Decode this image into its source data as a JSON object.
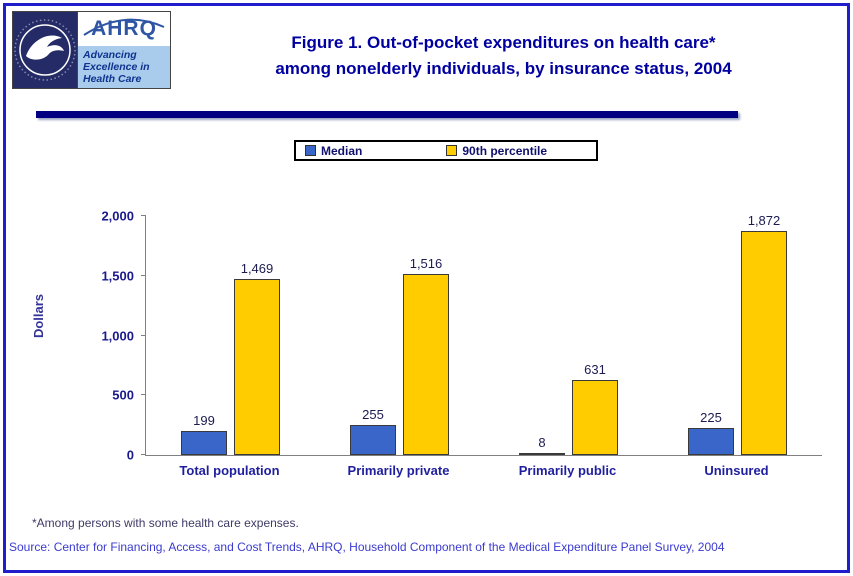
{
  "header": {
    "title_line1": "Figure 1. Out-of-pocket expenditures on health care*",
    "title_line2": "among nonelderly individuals, by insurance status, 2004",
    "logos": {
      "hhs": {
        "name": "HHS seal"
      },
      "ahrq": {
        "name": "AHRQ",
        "tagline": [
          "Advancing",
          "Excellence in",
          "Health Care"
        ]
      }
    }
  },
  "legend": {
    "items": [
      {
        "label": "Median",
        "color": "#3b66c9"
      },
      {
        "label": "90th percentile",
        "color": "#ffcc00"
      }
    ]
  },
  "chart_data": {
    "type": "bar",
    "title": "Out-of-pocket expenditures on health care among nonelderly individuals, by insurance status, 2004",
    "categories": [
      "Total population",
      "Primarily private",
      "Primarily public",
      "Uninsured"
    ],
    "series": [
      {
        "name": "Median",
        "color": "#3b66c9",
        "values": [
          199,
          255,
          8,
          225
        ],
        "labels": [
          "199",
          "255",
          "8",
          "225"
        ]
      },
      {
        "name": "90th percentile",
        "color": "#ffcc00",
        "values": [
          1469,
          1516,
          631,
          1872
        ],
        "labels": [
          "1,469",
          "1,516",
          "631",
          "1,872"
        ]
      }
    ],
    "xlabel": "",
    "ylabel": "Dollars",
    "ylim": [
      0,
      2000
    ],
    "yticks": [
      0,
      500,
      1000,
      1500,
      2000
    ],
    "ytick_labels": [
      "0",
      "500",
      "1,000",
      "1,500",
      "2,000"
    ],
    "grid": false,
    "legend_position": "top"
  },
  "footnotes": {
    "note": "*Among persons with some health care expenses.",
    "source": "Source: Center for Financing, Access, and Cost Trends, AHRQ, Household Component of the Medical Expenditure Panel Survey, 2004"
  }
}
